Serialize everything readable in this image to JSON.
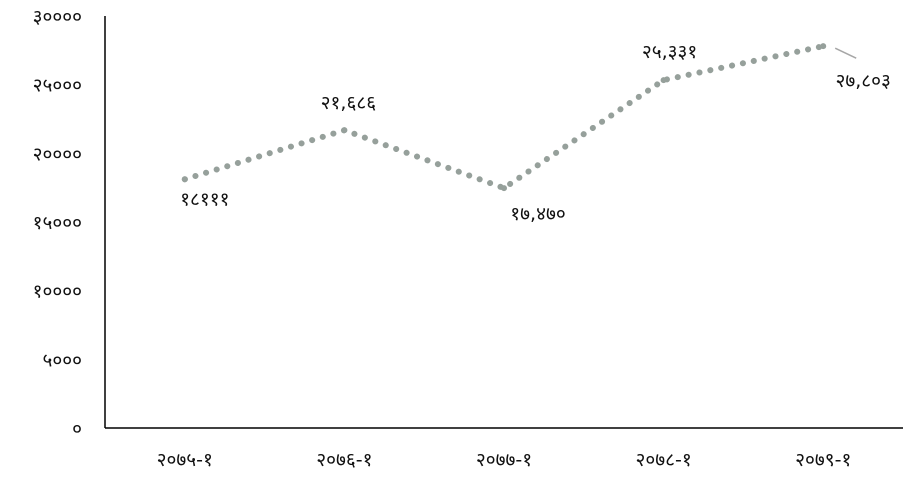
{
  "chart_data": {
    "type": "line",
    "categories": [
      "२०७५-१",
      "२०७६-१",
      "२०७७-१",
      "२०७८-१",
      "२०७९-१"
    ],
    "series": [
      {
        "values": [
          18111,
          21686,
          17470,
          25331,
          27803
        ],
        "data_labels": [
          "१८१११",
          "२१,६८६",
          "१७,४७०",
          "२५,३३१",
          "२७,८०३"
        ],
        "color": "#96a09b",
        "line_style": "dotted"
      }
    ],
    "ylim": [
      0,
      30000
    ],
    "y_ticks": [
      0,
      5000,
      10000,
      15000,
      20000,
      25000,
      30000
    ],
    "y_tick_labels": [
      "०",
      "५०००",
      "१००००",
      "१५०००",
      "२००००",
      "२५०००",
      "३००००"
    ],
    "title": "",
    "xlabel": "",
    "ylabel": "",
    "grid": false,
    "legend": "none"
  }
}
